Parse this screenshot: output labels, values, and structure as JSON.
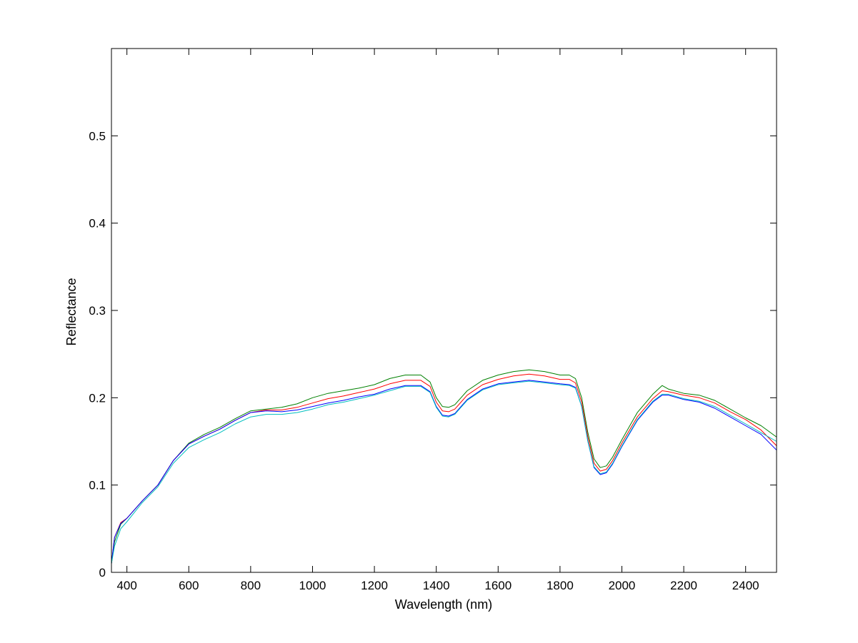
{
  "chart_data": {
    "type": "line",
    "title": "",
    "xlabel": "Wavelength (nm)",
    "ylabel": "Reflectance",
    "xlim": [
      350,
      2500
    ],
    "ylim": [
      0,
      0.6
    ],
    "x_ticks": [
      400,
      600,
      800,
      1000,
      1200,
      1400,
      1600,
      1800,
      2000,
      2200,
      2400
    ],
    "y_ticks": [
      0,
      0.1,
      0.2,
      0.3,
      0.4,
      0.5
    ],
    "x_tick_labels": [
      "400",
      "600",
      "800",
      "1000",
      "1200",
      "1400",
      "1600",
      "1800",
      "2000",
      "2200",
      "2400"
    ],
    "y_tick_labels": [
      "0",
      "0.1",
      "0.2",
      "0.3",
      "0.4",
      "0.5"
    ],
    "grid": false,
    "legend": "none",
    "x": [
      350,
      360,
      380,
      400,
      450,
      500,
      550,
      600,
      650,
      700,
      750,
      800,
      850,
      900,
      950,
      1000,
      1050,
      1100,
      1150,
      1200,
      1250,
      1300,
      1350,
      1380,
      1400,
      1420,
      1440,
      1460,
      1480,
      1500,
      1550,
      1600,
      1650,
      1700,
      1750,
      1800,
      1830,
      1850,
      1870,
      1890,
      1910,
      1930,
      1950,
      1970,
      2000,
      2050,
      2100,
      2130,
      2150,
      2200,
      2250,
      2300,
      2350,
      2400,
      2450,
      2500
    ],
    "series": [
      {
        "color": "#008000",
        "values": [
          0.01,
          0.035,
          0.055,
          0.062,
          0.082,
          0.1,
          0.128,
          0.148,
          0.158,
          0.166,
          0.176,
          0.185,
          0.187,
          0.189,
          0.193,
          0.2,
          0.205,
          0.208,
          0.211,
          0.215,
          0.222,
          0.226,
          0.226,
          0.218,
          0.2,
          0.19,
          0.189,
          0.192,
          0.2,
          0.208,
          0.22,
          0.226,
          0.23,
          0.232,
          0.23,
          0.226,
          0.226,
          0.222,
          0.2,
          0.16,
          0.13,
          0.12,
          0.122,
          0.132,
          0.152,
          0.183,
          0.204,
          0.214,
          0.21,
          0.205,
          0.203,
          0.197,
          0.187,
          0.177,
          0.168,
          0.155
        ]
      },
      {
        "color": "#ff0000",
        "values": [
          0.01,
          0.04,
          0.057,
          0.062,
          0.082,
          0.1,
          0.128,
          0.147,
          0.156,
          0.164,
          0.174,
          0.183,
          0.186,
          0.186,
          0.189,
          0.194,
          0.199,
          0.202,
          0.206,
          0.21,
          0.216,
          0.22,
          0.22,
          0.213,
          0.195,
          0.185,
          0.184,
          0.187,
          0.195,
          0.203,
          0.215,
          0.221,
          0.225,
          0.227,
          0.225,
          0.221,
          0.221,
          0.217,
          0.195,
          0.155,
          0.125,
          0.116,
          0.118,
          0.128,
          0.148,
          0.178,
          0.199,
          0.208,
          0.207,
          0.203,
          0.2,
          0.194,
          0.184,
          0.175,
          0.163,
          0.145
        ]
      },
      {
        "color": "#0000ff",
        "values": [
          0.01,
          0.04,
          0.056,
          0.062,
          0.082,
          0.1,
          0.128,
          0.147,
          0.156,
          0.164,
          0.174,
          0.183,
          0.185,
          0.184,
          0.186,
          0.19,
          0.194,
          0.197,
          0.201,
          0.204,
          0.21,
          0.214,
          0.214,
          0.207,
          0.19,
          0.18,
          0.179,
          0.182,
          0.19,
          0.198,
          0.21,
          0.216,
          0.218,
          0.22,
          0.218,
          0.216,
          0.215,
          0.212,
          0.19,
          0.15,
          0.12,
          0.112,
          0.114,
          0.124,
          0.144,
          0.174,
          0.195,
          0.203,
          0.203,
          0.198,
          0.195,
          0.188,
          0.178,
          0.168,
          0.158,
          0.14
        ]
      },
      {
        "color": "#00bfbf",
        "values": [
          0.01,
          0.03,
          0.05,
          0.058,
          0.08,
          0.098,
          0.125,
          0.143,
          0.152,
          0.16,
          0.17,
          0.178,
          0.181,
          0.181,
          0.183,
          0.187,
          0.192,
          0.195,
          0.199,
          0.203,
          0.208,
          0.213,
          0.213,
          0.206,
          0.189,
          0.179,
          0.178,
          0.181,
          0.189,
          0.197,
          0.209,
          0.215,
          0.217,
          0.219,
          0.217,
          0.215,
          0.214,
          0.211,
          0.19,
          0.15,
          0.121,
          0.113,
          0.115,
          0.125,
          0.145,
          0.175,
          0.196,
          0.204,
          0.204,
          0.199,
          0.196,
          0.19,
          0.18,
          0.17,
          0.16,
          0.15
        ]
      }
    ]
  }
}
